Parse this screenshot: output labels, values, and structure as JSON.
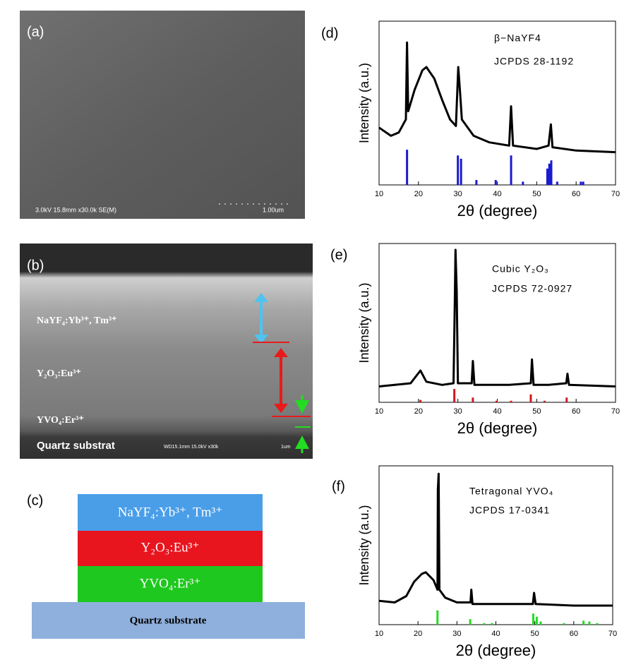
{
  "images": {
    "a": {
      "label": "(a)",
      "info": "3.0kV 15.8mm x30.0k SE(M)",
      "scale": "1.00um"
    },
    "b": {
      "label": "(b)",
      "layers": [
        "NaYF₄:Yb³⁺, Tm³⁺",
        "Y₂O₃:Eu³⁺",
        "YVO₄:Er³⁺",
        "Quartz substrat"
      ],
      "info": "WD15.1mm 15.0kV x30k",
      "scale": "1um"
    }
  },
  "diagram": {
    "label": "(c)",
    "layers": [
      "NaYF₄:Yb³⁺, Tm³⁺",
      "Y₂O₃:Eu³⁺",
      "YVO₄:Er³⁺"
    ],
    "substrate": "Quartz substrate"
  },
  "chart_data": [
    {
      "type": "line",
      "panel_label": "(d)",
      "annotations": [
        "β−NaYF4",
        "JCPDS 28-1192"
      ],
      "xlabel": "2θ (degree)",
      "ylabel": "Intensity (a.u.)",
      "xlim": [
        10,
        70
      ],
      "xticks": [
        10,
        20,
        30,
        40,
        50,
        60,
        70
      ],
      "ylim": [
        0,
        100
      ],
      "series": [
        {
          "style": "line",
          "color": "#000000",
          "x": [
            10,
            13,
            15,
            16.8,
            17.1,
            17.4,
            19,
            21,
            22,
            24,
            26,
            28,
            29.5,
            30.1,
            30.6,
            31,
            34,
            38,
            43,
            43.5,
            44,
            50,
            53,
            53.6,
            54,
            60,
            70
          ],
          "values": [
            35,
            30,
            32,
            40,
            87,
            45,
            58,
            70,
            72,
            65,
            52,
            40,
            36,
            72,
            55,
            40,
            30,
            26,
            24,
            48,
            24,
            22,
            24,
            37,
            23,
            21,
            20
          ]
        },
        {
          "style": "stick",
          "color": "#1a1ad0",
          "x": [
            17.1,
            30.0,
            30.8,
            34.7,
            39.6,
            43.5,
            46.5,
            52.7,
            53.2,
            53.7,
            55.2,
            61.2,
            61.8
          ],
          "values": [
            21.5,
            18,
            16,
            3,
            3,
            18,
            2,
            10,
            13,
            15,
            2,
            2,
            2
          ]
        }
      ]
    },
    {
      "type": "line",
      "panel_label": "(e)",
      "annotations": [
        "Cubic Y₂O₃",
        "JCPDS 72-0927"
      ],
      "xlabel": "2θ (degree)",
      "ylabel": "Intensity (a.u.)",
      "xlim": [
        10,
        70
      ],
      "xticks": [
        10,
        20,
        30,
        40,
        50,
        60,
        70
      ],
      "ylim": [
        0,
        100
      ],
      "series": [
        {
          "style": "line",
          "color": "#000000",
          "x": [
            10,
            18,
            20.5,
            22,
            26,
            28.9,
            29.2,
            29.4,
            29.7,
            30,
            33.5,
            33.8,
            34.2,
            39.5,
            43,
            48.5,
            48.8,
            49.2,
            53,
            57.5,
            57.8,
            58.2,
            70
          ],
          "values": [
            10,
            12,
            20,
            13,
            11,
            12,
            60,
            96,
            70,
            12,
            12,
            26,
            11,
            11,
            11,
            12,
            27,
            11,
            11,
            12,
            18,
            11,
            10
          ]
        },
        {
          "style": "stick",
          "color": "#d01a1a",
          "x": [
            20.5,
            29.1,
            33.8,
            39.8,
            43.5,
            48.5,
            52,
            57.6
          ],
          "values": [
            1.5,
            8.4,
            3,
            1,
            1,
            5,
            1,
            3
          ]
        }
      ]
    },
    {
      "type": "line",
      "panel_label": "(f)",
      "annotations": [
        "Tetragonal YVO₄",
        "JCPDS 17-0341"
      ],
      "xlabel": "2θ (degree)",
      "ylabel": "Intensity (a.u.)",
      "xlim": [
        10,
        70
      ],
      "xticks": [
        10,
        20,
        30,
        40,
        50,
        60,
        70
      ],
      "ylim": [
        0,
        100
      ],
      "series": [
        {
          "style": "line",
          "color": "#000000",
          "x": [
            10,
            14,
            17,
            19,
            21,
            22,
            24,
            25,
            25.1,
            25.3,
            25.5,
            27,
            30,
            33.5,
            33.7,
            34,
            40,
            49.5,
            49.8,
            50.2,
            60,
            70
          ],
          "values": [
            15,
            14,
            18,
            27,
            32,
            33,
            28,
            22,
            85,
            95,
            22,
            17,
            14,
            14,
            22,
            13,
            13,
            13,
            20,
            13,
            12,
            12
          ]
        },
        {
          "style": "stick",
          "color": "#22dd22",
          "x": [
            25.0,
            33.4,
            37,
            39,
            49.6,
            50.5,
            51.5,
            57.5,
            62.5,
            64,
            66
          ],
          "values": [
            9,
            3.5,
            1,
            1,
            7,
            5,
            2,
            1,
            2.5,
            2,
            1
          ]
        }
      ]
    }
  ]
}
